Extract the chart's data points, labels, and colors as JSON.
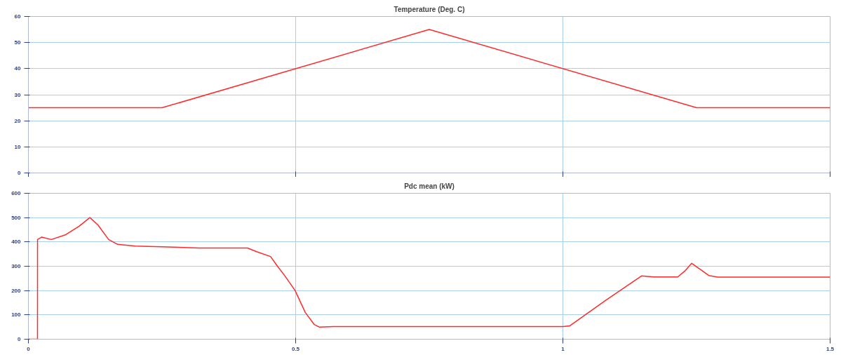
{
  "chart_data": [
    {
      "type": "line",
      "title": "Temperature (Deg. C)",
      "x": [
        0,
        0.25,
        0.75,
        1.25,
        1.5
      ],
      "series": [
        {
          "color": "#ff2a2a",
          "values": [
            25,
            25,
            55,
            25,
            25
          ]
        }
      ],
      "xlim": [
        0,
        1.5
      ],
      "xticks": [
        0,
        0.5,
        1,
        1.5
      ],
      "ylim": [
        0,
        60
      ],
      "yticks": [
        0,
        10,
        20,
        30,
        40,
        50,
        60
      ],
      "grid": true,
      "tick_labels": "y",
      "line_style": "solid",
      "marker": "none"
    },
    {
      "type": "line",
      "title": "Pdc mean (kW)",
      "x": [
        0,
        0.017,
        0.0171,
        0.025,
        0.043,
        0.07,
        0.095,
        0.115,
        0.13,
        0.15,
        0.167,
        0.2,
        0.25,
        0.32,
        0.41,
        0.427,
        0.453,
        0.466,
        0.48,
        0.499,
        0.518,
        0.535,
        0.544,
        0.57,
        0.7,
        0.9,
        1.0,
        1.013,
        1.08,
        1.147,
        1.17,
        1.215,
        1.228,
        1.241,
        1.255,
        1.273,
        1.29,
        1.4,
        1.5
      ],
      "series": [
        {
          "color": "#ff2a2a",
          "values": [
            0,
            0,
            410,
            420,
            410,
            430,
            465,
            500,
            470,
            410,
            390,
            383,
            380,
            375,
            375,
            360,
            340,
            300,
            260,
            200,
            110,
            60,
            50,
            52,
            52,
            52,
            52,
            55,
            160,
            260,
            256,
            256,
            280,
            312,
            290,
            262,
            255,
            255,
            255
          ]
        }
      ],
      "xlim": [
        0,
        1.5
      ],
      "xticks": [
        0,
        0.5,
        1,
        1.5
      ],
      "ylim": [
        0,
        600
      ],
      "yticks": [
        0,
        100,
        200,
        300,
        400,
        500,
        600
      ],
      "grid": true,
      "line_style": "solid",
      "marker": "none"
    }
  ]
}
